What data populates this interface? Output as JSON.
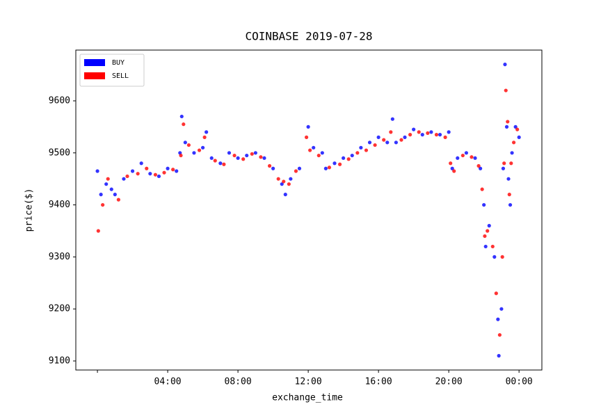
{
  "chart_data": {
    "type": "scatter",
    "title": "COINBASE 2019-07-28",
    "x_label": "exchange_time",
    "y_label": "price($)",
    "legend_position": "upper left",
    "xlim": [
      -1.23,
      25.3
    ],
    "ylim": [
      9082.6,
      9697.6
    ],
    "xticks": [
      {
        "value": 0,
        "label": null
      },
      {
        "value": 4,
        "label": "04:00"
      },
      {
        "value": 8,
        "label": "08:00"
      },
      {
        "value": 12,
        "label": "12:00"
      },
      {
        "value": 16,
        "label": "16:00"
      },
      {
        "value": 20,
        "label": "20:00"
      },
      {
        "value": 24,
        "label": "00:00"
      }
    ],
    "yticks": [
      9100,
      9200,
      9300,
      9400,
      9500,
      9600
    ],
    "series": [
      {
        "name": "BUY",
        "color": "#0000ff",
        "x": [
          0,
          0.2,
          0.5,
          0.8,
          1.0,
          1.5,
          2.0,
          2.5,
          3.0,
          3.5,
          4.0,
          4.5,
          4.7,
          4.8,
          5.0,
          5.5,
          6.0,
          6.2,
          6.5,
          7.0,
          7.5,
          8.0,
          8.5,
          9.0,
          9.5,
          10.0,
          10.5,
          10.7,
          11.0,
          11.5,
          12.0,
          12.3,
          12.8,
          13.0,
          13.5,
          14.0,
          14.5,
          15.0,
          15.5,
          16.0,
          16.5,
          16.8,
          17.0,
          17.5,
          18.0,
          18.5,
          19.0,
          19.5,
          20.0,
          20.2,
          20.5,
          21.0,
          21.5,
          21.8,
          22.0,
          22.1,
          22.3,
          22.6,
          22.8,
          22.85,
          23.0,
          23.1,
          23.2,
          23.3,
          23.4,
          23.5,
          23.6,
          23.8,
          24.0
        ],
        "values": [
          9465,
          9420,
          9440,
          9430,
          9420,
          9450,
          9465,
          9480,
          9460,
          9455,
          9470,
          9465,
          9500,
          9570,
          9520,
          9500,
          9510,
          9540,
          9490,
          9480,
          9500,
          9490,
          9495,
          9500,
          9490,
          9470,
          9440,
          9420,
          9450,
          9470,
          9550,
          9510,
          9500,
          9470,
          9480,
          9490,
          9495,
          9510,
          9520,
          9530,
          9520,
          9565,
          9520,
          9530,
          9545,
          9535,
          9540,
          9535,
          9540,
          9470,
          9490,
          9500,
          9490,
          9470,
          9400,
          9320,
          9360,
          9300,
          9180,
          9110,
          9200,
          9470,
          9670,
          9550,
          9450,
          9400,
          9500,
          9550,
          9530
        ]
      },
      {
        "name": "SELL",
        "color": "#ff0000",
        "x": [
          0.05,
          0.3,
          0.6,
          1.2,
          1.7,
          2.3,
          2.8,
          3.3,
          3.8,
          4.3,
          4.75,
          4.9,
          5.2,
          5.8,
          6.1,
          6.7,
          7.2,
          7.8,
          8.3,
          8.8,
          9.3,
          9.8,
          10.3,
          10.6,
          10.9,
          11.3,
          11.9,
          12.1,
          12.6,
          13.2,
          13.8,
          14.3,
          14.8,
          15.3,
          15.8,
          16.3,
          16.7,
          17.3,
          17.8,
          18.3,
          18.8,
          19.3,
          19.8,
          20.1,
          20.3,
          20.8,
          21.3,
          21.7,
          21.9,
          22.05,
          22.2,
          22.5,
          22.7,
          22.9,
          23.05,
          23.15,
          23.25,
          23.35,
          23.45,
          23.55,
          23.7,
          23.9
        ],
        "values": [
          9350,
          9400,
          9450,
          9410,
          9455,
          9460,
          9470,
          9458,
          9462,
          9468,
          9495,
          9555,
          9515,
          9505,
          9530,
          9485,
          9478,
          9495,
          9488,
          9498,
          9492,
          9475,
          9450,
          9445,
          9440,
          9465,
          9530,
          9505,
          9495,
          9472,
          9478,
          9488,
          9500,
          9505,
          9515,
          9525,
          9540,
          9525,
          9535,
          9540,
          9538,
          9535,
          9530,
          9480,
          9465,
          9495,
          9492,
          9475,
          9430,
          9340,
          9350,
          9320,
          9230,
          9150,
          9300,
          9480,
          9620,
          9560,
          9420,
          9480,
          9520,
          9545
        ]
      }
    ]
  }
}
